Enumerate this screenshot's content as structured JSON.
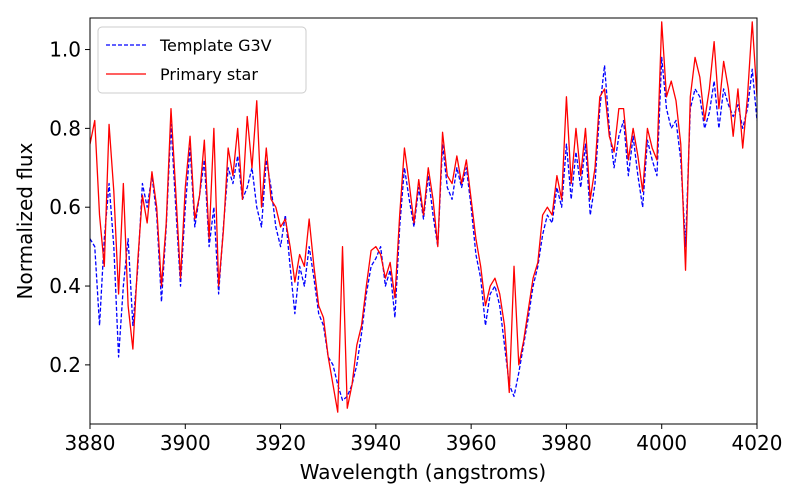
{
  "chart_data": {
    "type": "line",
    "title": "",
    "xlabel": "Wavelength (angstroms)",
    "ylabel": "Normalized flux",
    "xlim": [
      3880,
      4020
    ],
    "ylim": [
      0.05,
      1.08
    ],
    "xticks": [
      3880,
      3900,
      3920,
      3940,
      3960,
      3980,
      4000,
      4020
    ],
    "yticks": [
      0.2,
      0.4,
      0.6,
      0.8,
      1.0
    ],
    "xtick_labels": [
      "3880",
      "3900",
      "3920",
      "3940",
      "3960",
      "3980",
      "4000",
      "4020"
    ],
    "ytick_labels": [
      "0.2",
      "0.4",
      "0.6",
      "0.8",
      "1.0"
    ],
    "grid": false,
    "legend_position": "top-left",
    "series": [
      {
        "name": "Template G3V",
        "color": "#0000ff",
        "style": "dashed",
        "points": [
          [
            3880,
            0.52
          ],
          [
            3881,
            0.5
          ],
          [
            3882,
            0.3
          ],
          [
            3883,
            0.52
          ],
          [
            3884,
            0.66
          ],
          [
            3885,
            0.5
          ],
          [
            3886,
            0.22
          ],
          [
            3887,
            0.4
          ],
          [
            3888,
            0.52
          ],
          [
            3889,
            0.3
          ],
          [
            3890,
            0.44
          ],
          [
            3891,
            0.66
          ],
          [
            3892,
            0.6
          ],
          [
            3893,
            0.68
          ],
          [
            3894,
            0.58
          ],
          [
            3895,
            0.36
          ],
          [
            3896,
            0.55
          ],
          [
            3897,
            0.81
          ],
          [
            3898,
            0.6
          ],
          [
            3899,
            0.4
          ],
          [
            3900,
            0.6
          ],
          [
            3901,
            0.75
          ],
          [
            3902,
            0.55
          ],
          [
            3903,
            0.63
          ],
          [
            3904,
            0.72
          ],
          [
            3905,
            0.5
          ],
          [
            3906,
            0.6
          ],
          [
            3907,
            0.38
          ],
          [
            3908,
            0.55
          ],
          [
            3909,
            0.7
          ],
          [
            3910,
            0.66
          ],
          [
            3911,
            0.73
          ],
          [
            3912,
            0.62
          ],
          [
            3913,
            0.65
          ],
          [
            3914,
            0.7
          ],
          [
            3915,
            0.6
          ],
          [
            3916,
            0.55
          ],
          [
            3917,
            0.72
          ],
          [
            3918,
            0.65
          ],
          [
            3919,
            0.55
          ],
          [
            3920,
            0.5
          ],
          [
            3921,
            0.58
          ],
          [
            3922,
            0.45
          ],
          [
            3923,
            0.33
          ],
          [
            3924,
            0.45
          ],
          [
            3925,
            0.4
          ],
          [
            3926,
            0.5
          ],
          [
            3927,
            0.42
          ],
          [
            3928,
            0.33
          ],
          [
            3929,
            0.3
          ],
          [
            3930,
            0.22
          ],
          [
            3931,
            0.2
          ],
          [
            3932,
            0.15
          ],
          [
            3933,
            0.11
          ],
          [
            3934,
            0.12
          ],
          [
            3935,
            0.15
          ],
          [
            3936,
            0.2
          ],
          [
            3937,
            0.28
          ],
          [
            3938,
            0.38
          ],
          [
            3939,
            0.45
          ],
          [
            3940,
            0.47
          ],
          [
            3941,
            0.5
          ],
          [
            3942,
            0.4
          ],
          [
            3943,
            0.44
          ],
          [
            3944,
            0.32
          ],
          [
            3945,
            0.55
          ],
          [
            3946,
            0.7
          ],
          [
            3947,
            0.62
          ],
          [
            3948,
            0.55
          ],
          [
            3949,
            0.65
          ],
          [
            3950,
            0.57
          ],
          [
            3951,
            0.68
          ],
          [
            3952,
            0.58
          ],
          [
            3953,
            0.5
          ],
          [
            3954,
            0.76
          ],
          [
            3955,
            0.65
          ],
          [
            3956,
            0.62
          ],
          [
            3957,
            0.7
          ],
          [
            3958,
            0.65
          ],
          [
            3959,
            0.7
          ],
          [
            3960,
            0.6
          ],
          [
            3961,
            0.48
          ],
          [
            3962,
            0.42
          ],
          [
            3963,
            0.3
          ],
          [
            3964,
            0.38
          ],
          [
            3965,
            0.4
          ],
          [
            3966,
            0.35
          ],
          [
            3967,
            0.25
          ],
          [
            3968,
            0.15
          ],
          [
            3969,
            0.12
          ],
          [
            3970,
            0.18
          ],
          [
            3971,
            0.25
          ],
          [
            3972,
            0.32
          ],
          [
            3973,
            0.4
          ],
          [
            3974,
            0.45
          ],
          [
            3975,
            0.53
          ],
          [
            3976,
            0.58
          ],
          [
            3977,
            0.56
          ],
          [
            3978,
            0.65
          ],
          [
            3979,
            0.6
          ],
          [
            3980,
            0.76
          ],
          [
            3981,
            0.62
          ],
          [
            3982,
            0.74
          ],
          [
            3983,
            0.65
          ],
          [
            3984,
            0.76
          ],
          [
            3985,
            0.58
          ],
          [
            3986,
            0.66
          ],
          [
            3987,
            0.85
          ],
          [
            3988,
            0.96
          ],
          [
            3989,
            0.8
          ],
          [
            3990,
            0.7
          ],
          [
            3991,
            0.78
          ],
          [
            3992,
            0.82
          ],
          [
            3993,
            0.68
          ],
          [
            3994,
            0.78
          ],
          [
            3995,
            0.68
          ],
          [
            3996,
            0.6
          ],
          [
            3997,
            0.77
          ],
          [
            3998,
            0.72
          ],
          [
            3999,
            0.68
          ],
          [
            4000,
            0.98
          ],
          [
            4001,
            0.85
          ],
          [
            4002,
            0.8
          ],
          [
            4003,
            0.82
          ],
          [
            4004,
            0.72
          ],
          [
            4005,
            0.5
          ],
          [
            4006,
            0.85
          ],
          [
            4007,
            0.9
          ],
          [
            4008,
            0.88
          ],
          [
            4009,
            0.8
          ],
          [
            4010,
            0.84
          ],
          [
            4011,
            0.92
          ],
          [
            4012,
            0.8
          ],
          [
            4013,
            0.9
          ],
          [
            4014,
            0.86
          ],
          [
            4015,
            0.83
          ],
          [
            4016,
            0.86
          ],
          [
            4017,
            0.8
          ],
          [
            4018,
            0.85
          ],
          [
            4019,
            0.95
          ],
          [
            4020,
            0.82
          ]
        ]
      },
      {
        "name": "Primary star",
        "color": "#ff0000",
        "style": "solid",
        "points": [
          [
            3880,
            0.76
          ],
          [
            3881,
            0.82
          ],
          [
            3882,
            0.58
          ],
          [
            3883,
            0.45
          ],
          [
            3884,
            0.81
          ],
          [
            3885,
            0.64
          ],
          [
            3886,
            0.38
          ],
          [
            3887,
            0.66
          ],
          [
            3888,
            0.35
          ],
          [
            3889,
            0.24
          ],
          [
            3890,
            0.46
          ],
          [
            3891,
            0.63
          ],
          [
            3892,
            0.56
          ],
          [
            3893,
            0.69
          ],
          [
            3894,
            0.6
          ],
          [
            3895,
            0.4
          ],
          [
            3896,
            0.56
          ],
          [
            3897,
            0.85
          ],
          [
            3898,
            0.64
          ],
          [
            3899,
            0.42
          ],
          [
            3900,
            0.65
          ],
          [
            3901,
            0.78
          ],
          [
            3902,
            0.57
          ],
          [
            3903,
            0.63
          ],
          [
            3904,
            0.77
          ],
          [
            3905,
            0.52
          ],
          [
            3906,
            0.8
          ],
          [
            3907,
            0.4
          ],
          [
            3908,
            0.54
          ],
          [
            3909,
            0.75
          ],
          [
            3910,
            0.68
          ],
          [
            3911,
            0.8
          ],
          [
            3912,
            0.62
          ],
          [
            3913,
            0.83
          ],
          [
            3914,
            0.7
          ],
          [
            3915,
            0.87
          ],
          [
            3916,
            0.6
          ],
          [
            3917,
            0.75
          ],
          [
            3918,
            0.62
          ],
          [
            3919,
            0.6
          ],
          [
            3920,
            0.55
          ],
          [
            3921,
            0.57
          ],
          [
            3922,
            0.5
          ],
          [
            3923,
            0.41
          ],
          [
            3924,
            0.48
          ],
          [
            3925,
            0.45
          ],
          [
            3926,
            0.57
          ],
          [
            3927,
            0.45
          ],
          [
            3928,
            0.35
          ],
          [
            3929,
            0.32
          ],
          [
            3930,
            0.22
          ],
          [
            3931,
            0.15
          ],
          [
            3932,
            0.08
          ],
          [
            3933,
            0.5
          ],
          [
            3934,
            0.09
          ],
          [
            3935,
            0.15
          ],
          [
            3936,
            0.25
          ],
          [
            3937,
            0.3
          ],
          [
            3938,
            0.4
          ],
          [
            3939,
            0.49
          ],
          [
            3940,
            0.5
          ],
          [
            3941,
            0.48
          ],
          [
            3942,
            0.42
          ],
          [
            3943,
            0.46
          ],
          [
            3944,
            0.37
          ],
          [
            3945,
            0.58
          ],
          [
            3946,
            0.75
          ],
          [
            3947,
            0.66
          ],
          [
            3948,
            0.56
          ],
          [
            3949,
            0.67
          ],
          [
            3950,
            0.58
          ],
          [
            3951,
            0.7
          ],
          [
            3952,
            0.62
          ],
          [
            3953,
            0.5
          ],
          [
            3954,
            0.79
          ],
          [
            3955,
            0.68
          ],
          [
            3956,
            0.66
          ],
          [
            3957,
            0.73
          ],
          [
            3958,
            0.66
          ],
          [
            3959,
            0.72
          ],
          [
            3960,
            0.62
          ],
          [
            3961,
            0.52
          ],
          [
            3962,
            0.45
          ],
          [
            3963,
            0.35
          ],
          [
            3964,
            0.4
          ],
          [
            3965,
            0.42
          ],
          [
            3966,
            0.38
          ],
          [
            3967,
            0.3
          ],
          [
            3968,
            0.13
          ],
          [
            3969,
            0.45
          ],
          [
            3970,
            0.2
          ],
          [
            3971,
            0.26
          ],
          [
            3972,
            0.34
          ],
          [
            3973,
            0.42
          ],
          [
            3974,
            0.46
          ],
          [
            3975,
            0.58
          ],
          [
            3976,
            0.6
          ],
          [
            3977,
            0.58
          ],
          [
            3978,
            0.68
          ],
          [
            3979,
            0.62
          ],
          [
            3980,
            0.88
          ],
          [
            3981,
            0.66
          ],
          [
            3982,
            0.8
          ],
          [
            3983,
            0.68
          ],
          [
            3984,
            0.8
          ],
          [
            3985,
            0.62
          ],
          [
            3986,
            0.7
          ],
          [
            3987,
            0.88
          ],
          [
            3988,
            0.9
          ],
          [
            3989,
            0.78
          ],
          [
            3990,
            0.74
          ],
          [
            3991,
            0.85
          ],
          [
            3992,
            0.85
          ],
          [
            3993,
            0.72
          ],
          [
            3994,
            0.8
          ],
          [
            3995,
            0.73
          ],
          [
            3996,
            0.64
          ],
          [
            3997,
            0.8
          ],
          [
            3998,
            0.75
          ],
          [
            3999,
            0.72
          ],
          [
            4000,
            1.07
          ],
          [
            4001,
            0.88
          ],
          [
            4002,
            0.92
          ],
          [
            4003,
            0.87
          ],
          [
            4004,
            0.76
          ],
          [
            4005,
            0.44
          ],
          [
            4006,
            0.88
          ],
          [
            4007,
            0.98
          ],
          [
            4008,
            0.93
          ],
          [
            4009,
            0.82
          ],
          [
            4010,
            0.9
          ],
          [
            4011,
            1.02
          ],
          [
            4012,
            0.85
          ],
          [
            4013,
            0.97
          ],
          [
            4014,
            0.9
          ],
          [
            4015,
            0.78
          ],
          [
            4016,
            0.9
          ],
          [
            4017,
            0.75
          ],
          [
            4018,
            0.88
          ],
          [
            4019,
            1.07
          ],
          [
            4020,
            0.88
          ]
        ]
      }
    ]
  }
}
